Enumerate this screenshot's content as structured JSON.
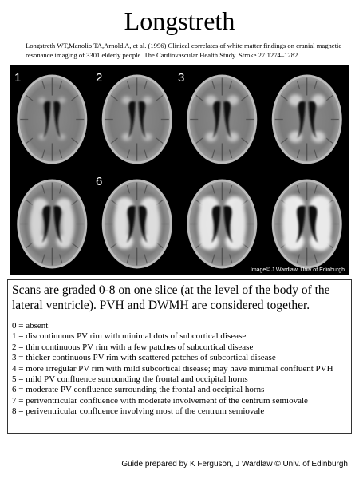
{
  "title": "Longstreth",
  "citation": "Longstreth WT,Manolio TA,Arnold A, et al. (1996) Clinical correlates of white matter findings on cranial magnetic resonance imaging of 3301 elderly people. The Cardiovascular Health Study. Stroke 27:1274–1282",
  "image": {
    "labels": [
      "1",
      "2",
      "3",
      "6"
    ],
    "credit": "Image© J Wardlaw, Univ of Edinburgh"
  },
  "description": "Scans are graded 0-8 on one slice (at the level of the body of the lateral ventricle). PVH and DWMH are considered together.",
  "grades": [
    "0 = absent",
    "1 = discontinuous PV rim with minimal dots of subcortical disease",
    "2 = thin continuous PV rim with a few patches of subcortical disease",
    "3 = thicker continuous PV rim with scattered patches of subcortical disease",
    "4 = more irregular PV rim with mild subcortical disease; may have minimal confluent PVH",
    "5 = mild PV confluence surrounding the frontal and occipital horns",
    "6 = moderate PV confluence surrounding the frontal and occipital horns",
    "7 = periventricular confluence with moderate involvement of the centrum semiovale",
    "8 = periventricular confluence involving most of the centrum semiovale"
  ],
  "footer": "Guide prepared by K Ferguson, J Wardlaw © Univ. of Edinburgh"
}
